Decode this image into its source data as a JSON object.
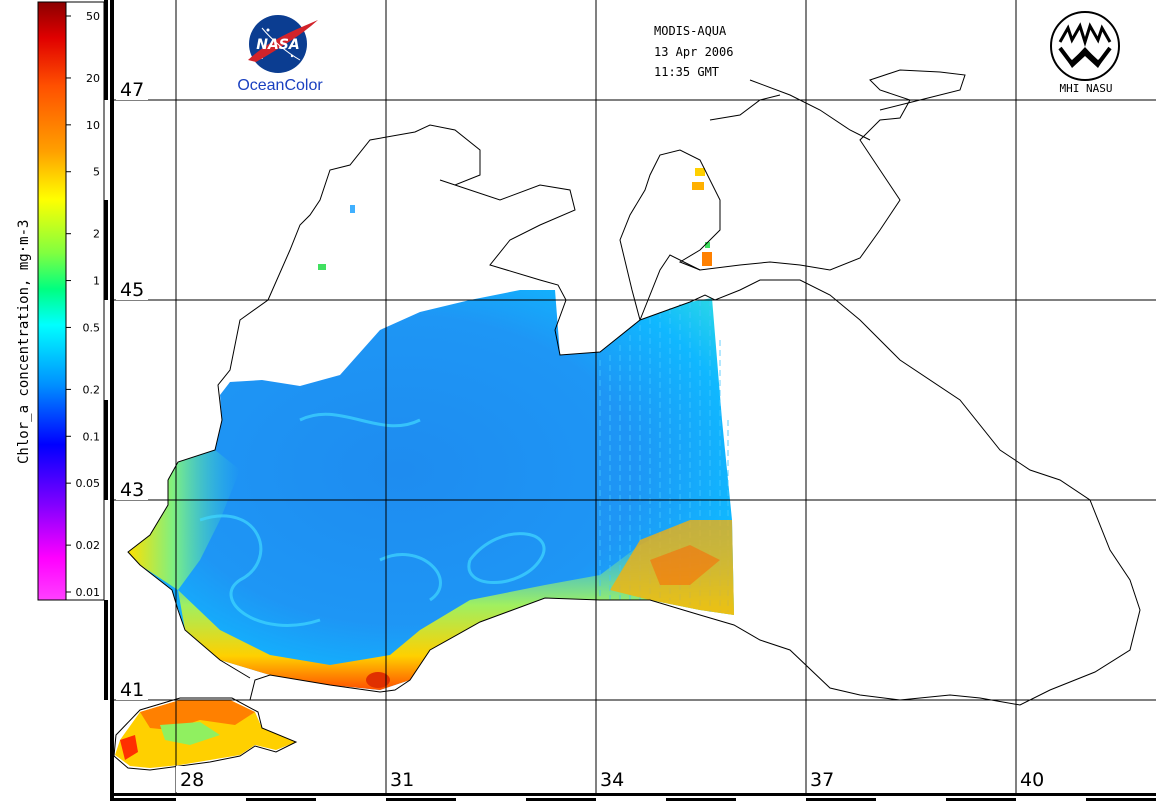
{
  "header": {
    "sensor": "MODIS-AQUA",
    "date": "13 Apr 2006",
    "time": "11:35 GMT"
  },
  "logos": {
    "nasa_text": "NASA",
    "oceancolor": "OceanColor",
    "mhi": "MHI NASU"
  },
  "colorbar": {
    "title": "Chlor_a concentration, mg·m-3",
    "ticks": [
      "50",
      "20",
      "10",
      "5",
      "2",
      "1",
      "0.5",
      "0.2",
      "0.1",
      "0.05",
      "0.02",
      "0.01"
    ],
    "colors": [
      "#8b0000",
      "#e00000",
      "#ff5000",
      "#ffa000",
      "#ffff00",
      "#80ff40",
      "#00ff80",
      "#00ffff",
      "#0090ff",
      "#0000ff",
      "#8000ff",
      "#ff00ff",
      "#ff40ff"
    ]
  },
  "grid": {
    "lat_labels": [
      "47",
      "45",
      "43",
      "41"
    ],
    "lon_labels": [
      "28",
      "31",
      "34",
      "37",
      "40"
    ]
  },
  "colors": {
    "sea_low": "#1e90ff",
    "sea_mid": "#00c0ff",
    "coast_high": "#ffd000",
    "coast_peak": "#ff3000"
  }
}
